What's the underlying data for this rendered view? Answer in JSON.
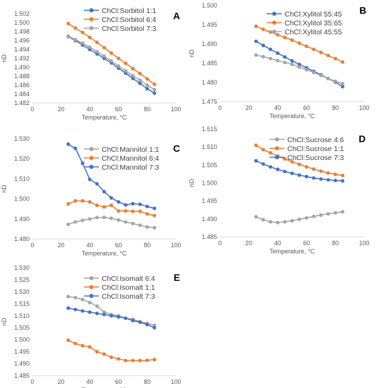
{
  "colors": {
    "blue": "#4472C4",
    "orange": "#ED7D31",
    "gray": "#A5A5A5",
    "axis": "#D9D9D9"
  },
  "chart_data": [
    {
      "type": "line",
      "panel": "A",
      "xlabel": "Temperature, °C",
      "ylabel": "nD",
      "xlim": [
        0,
        100
      ],
      "xticks": [
        0,
        20,
        40,
        60,
        80,
        100
      ],
      "ylim": [
        1.482,
        1.502
      ],
      "yticks": [
        1.482,
        1.484,
        1.486,
        1.488,
        1.49,
        1.492,
        1.494,
        1.496,
        1.498,
        1.5,
        1.502
      ],
      "ytick_labels": [
        "1.482",
        "1.484",
        "1.486",
        "1.488",
        "1.490",
        "1.492",
        "1.494",
        "1.496",
        "1.498",
        "1.500",
        "1.502"
      ],
      "legend_position": "top",
      "x": [
        25,
        30,
        35,
        40,
        45,
        50,
        55,
        60,
        65,
        70,
        75,
        80,
        85
      ],
      "series": [
        {
          "name": "ChCl:Sorbitol 1:1",
          "color": "blue",
          "values": [
            1.4969,
            1.496,
            1.495,
            1.494,
            1.493,
            1.492,
            1.491,
            1.4898,
            1.4887,
            1.4875,
            1.4864,
            1.4852,
            1.4842
          ]
        },
        {
          "name": "ChCl:Sorbitol  6:4",
          "color": "orange",
          "values": [
            1.4998,
            1.4988,
            1.4978,
            1.4967,
            1.4956,
            1.4944,
            1.4932,
            1.492,
            1.4909,
            1.4897,
            1.4886,
            1.4874,
            1.4862
          ]
        },
        {
          "name": "ChCl:Sorbitol 7:3",
          "color": "gray",
          "values": [
            1.497,
            1.4962,
            1.4954,
            1.4945,
            1.4935,
            1.4925,
            1.4914,
            1.4903,
            1.4892,
            1.4881,
            1.4871,
            1.486,
            1.485
          ]
        }
      ]
    },
    {
      "type": "line",
      "panel": "B",
      "xlabel": "Temperature, °C",
      "ylabel": "nD",
      "xlim": [
        0,
        100
      ],
      "xticks": [
        0,
        20,
        40,
        60,
        80,
        100
      ],
      "ylim": [
        1.475,
        1.5
      ],
      "yticks": [
        1.475,
        1.48,
        1.485,
        1.49,
        1.495,
        1.5
      ],
      "ytick_labels": [
        "1.475",
        "1.480",
        "1.485",
        "1.490",
        "1.495",
        "1.500"
      ],
      "legend_position": "top",
      "x": [
        25,
        30,
        35,
        40,
        45,
        50,
        55,
        60,
        65,
        70,
        75,
        80,
        85
      ],
      "series": [
        {
          "name": "ChCl:Xylitol 55:45",
          "color": "blue",
          "values": [
            1.4907,
            1.4896,
            1.4886,
            1.4876,
            1.4866,
            1.4856,
            1.4847,
            1.4838,
            1.4829,
            1.482,
            1.481,
            1.4801,
            1.4789
          ]
        },
        {
          "name": "ChCl:Xylitol 35:65",
          "color": "orange",
          "values": [
            1.4946,
            1.4938,
            1.4931,
            1.4924,
            1.4917,
            1.491,
            1.4902,
            1.4894,
            1.4886,
            1.4878,
            1.487,
            1.4862,
            1.4853
          ]
        },
        {
          "name": "ChCl:Xylitol 45:55",
          "color": "gray",
          "values": [
            1.4871,
            1.4867,
            1.4862,
            1.4857,
            1.4852,
            1.4847,
            1.484,
            1.4833,
            1.4826,
            1.4818,
            1.481,
            1.4803,
            1.4797
          ]
        }
      ]
    },
    {
      "type": "line",
      "panel": "C",
      "xlabel": "Temperature, °C",
      "ylabel": "nD",
      "xlim": [
        0,
        100
      ],
      "xticks": [
        0,
        20,
        40,
        60,
        80,
        100
      ],
      "ylim": [
        1.48,
        1.53
      ],
      "yticks": [
        1.48,
        1.49,
        1.5,
        1.51,
        1.52,
        1.53
      ],
      "ytick_labels": [
        "1.480",
        "1.490",
        "1.500",
        "1.510",
        "1.520",
        "1.530"
      ],
      "legend_position": "top",
      "x": [
        25,
        30,
        35,
        40,
        45,
        50,
        55,
        60,
        65,
        70,
        75,
        80,
        85
      ],
      "series": [
        {
          "name": "ChCl:Mannitol 1:1",
          "color": "gray",
          "values": [
            1.4873,
            1.4885,
            1.4893,
            1.49,
            1.4907,
            1.4908,
            1.4903,
            1.4895,
            1.4885,
            1.4877,
            1.4868,
            1.486,
            1.4856
          ]
        },
        {
          "name": "ChCl:Mannitol 6:4",
          "color": "orange",
          "values": [
            1.4975,
            1.499,
            1.499,
            1.4985,
            1.4968,
            1.496,
            1.4968,
            1.494,
            1.494,
            1.4938,
            1.4938,
            1.4925,
            1.4917
          ]
        },
        {
          "name": "ChCl:Mannitol 7:3",
          "color": "blue",
          "values": [
            1.5273,
            1.5252,
            1.5178,
            1.5097,
            1.5075,
            1.5036,
            1.5005,
            1.4985,
            1.497,
            1.4976,
            1.4973,
            1.4962,
            1.4953
          ]
        }
      ]
    },
    {
      "type": "line",
      "panel": "D",
      "xlabel": "Temperature, °C",
      "ylabel": "nD",
      "xlim": [
        0,
        100
      ],
      "xticks": [
        0,
        20,
        40,
        60,
        80,
        100
      ],
      "ylim": [
        1.485,
        1.515
      ],
      "yticks": [
        1.485,
        1.49,
        1.495,
        1.5,
        1.505,
        1.51,
        1.515
      ],
      "ytick_labels": [
        "1.485",
        "1.490",
        "1.495",
        "1.500",
        "1.505",
        "1.510",
        "1.515"
      ],
      "legend_position": "top",
      "x": [
        25,
        30,
        35,
        40,
        45,
        50,
        55,
        60,
        65,
        70,
        75,
        80,
        85
      ],
      "series": [
        {
          "name": "ChCl:Sucrose 4:6",
          "color": "gray",
          "values": [
            1.4906,
            1.4898,
            1.4892,
            1.489,
            1.4892,
            1.4895,
            1.4899,
            1.4903,
            1.4907,
            1.4911,
            1.4914,
            1.4917,
            1.492
          ]
        },
        {
          "name": "ChCl:Sucrose 1:1",
          "color": "orange",
          "values": [
            1.5105,
            1.5093,
            1.5084,
            1.5075,
            1.5067,
            1.5059,
            1.5052,
            1.5045,
            1.5039,
            1.5033,
            1.5028,
            1.5024,
            1.5021
          ]
        },
        {
          "name": "ChCl:Sucrose 7:3",
          "color": "blue",
          "values": [
            1.5062,
            1.5053,
            1.5045,
            1.5038,
            1.5032,
            1.5027,
            1.5022,
            1.5018,
            1.5014,
            1.5011,
            1.5009,
            1.5007,
            1.5006
          ]
        }
      ]
    },
    {
      "type": "line",
      "panel": "E",
      "xlabel": "Temperature, °C",
      "ylabel": "nD",
      "xlim": [
        0,
        100
      ],
      "xticks": [
        0,
        20,
        40,
        60,
        80,
        100
      ],
      "ylim": [
        1.485,
        1.53
      ],
      "yticks": [
        1.485,
        1.49,
        1.495,
        1.5,
        1.505,
        1.51,
        1.515,
        1.52,
        1.525,
        1.53
      ],
      "ytick_labels": [
        "1.485",
        "1.490",
        "1.495",
        "1.500",
        "1.505",
        "1.510",
        "1.515",
        "1.520",
        "1.525",
        "1.530"
      ],
      "legend_position": "top",
      "x": [
        25,
        30,
        35,
        40,
        45,
        50,
        55,
        60,
        65,
        70,
        75,
        80,
        85
      ],
      "series": [
        {
          "name": "ChCl:Isomalt 6:4",
          "color": "gray",
          "values": [
            1.518,
            1.5176,
            1.5168,
            1.5155,
            1.514,
            1.5115,
            1.5105,
            1.51,
            1.509,
            1.5085,
            1.5075,
            1.5068,
            1.506
          ]
        },
        {
          "name": "ChCl:Isomalt 1:1",
          "color": "orange",
          "values": [
            1.4998,
            1.4984,
            1.4975,
            1.497,
            1.495,
            1.494,
            1.4927,
            1.492,
            1.4913,
            1.4913,
            1.4913,
            1.4914,
            1.4917
          ]
        },
        {
          "name": "ChCl:Isomalt 7:3",
          "color": "blue",
          "values": [
            1.5132,
            1.5126,
            1.512,
            1.5115,
            1.511,
            1.5105,
            1.51,
            1.5095,
            1.509,
            1.508,
            1.5073,
            1.5063,
            1.505
          ]
        }
      ]
    }
  ]
}
